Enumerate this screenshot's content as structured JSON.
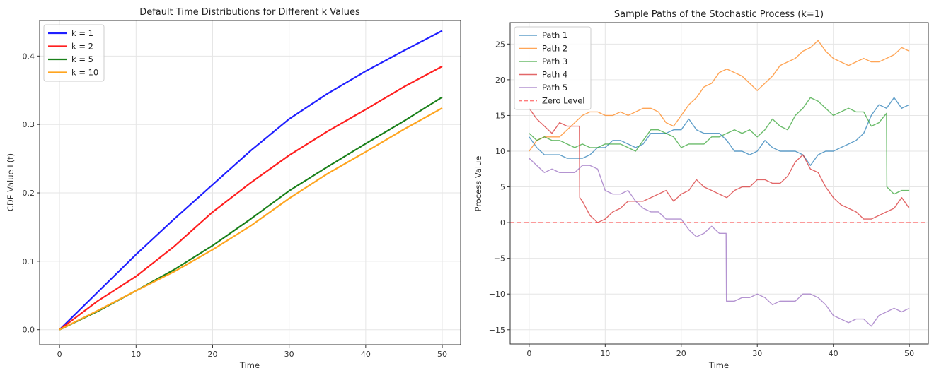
{
  "chart_data": [
    {
      "type": "line",
      "title": "Default Time Distributions for Different k Values",
      "xlabel": "Time",
      "ylabel": "CDF Value L(t)",
      "xlim": [
        -2.6,
        52.4
      ],
      "ylim": [
        -0.022,
        0.452
      ],
      "xticks": [
        0,
        10,
        20,
        30,
        40,
        50
      ],
      "xtick_labels": [
        "0",
        "10",
        "20",
        "30",
        "40",
        "50"
      ],
      "yticks": [
        0,
        0.1,
        0.2,
        0.3,
        0.4
      ],
      "ytick_labels": [
        "0.0",
        "0.1",
        "0.2",
        "0.3",
        "0.4"
      ],
      "grid": true,
      "legend_position": "top-left",
      "x": [
        0,
        5,
        10,
        15,
        20,
        25,
        30,
        35,
        40,
        45,
        50
      ],
      "series": [
        {
          "name": "k = 1",
          "color": "#1f1fff",
          "values": [
            0,
            0.055,
            0.11,
            0.162,
            0.212,
            0.262,
            0.308,
            0.345,
            0.378,
            0.408,
            0.437
          ]
        },
        {
          "name": "k = 2",
          "color": "#ff1f1f",
          "values": [
            0,
            0.042,
            0.078,
            0.122,
            0.172,
            0.215,
            0.255,
            0.29,
            0.322,
            0.355,
            0.385
          ]
        },
        {
          "name": "k = 5",
          "color": "#1a801a",
          "values": [
            0,
            0.027,
            0.057,
            0.088,
            0.123,
            0.162,
            0.203,
            0.238,
            0.272,
            0.305,
            0.34
          ]
        },
        {
          "name": "k = 10",
          "color": "#ffa51f",
          "values": [
            0,
            0.028,
            0.057,
            0.085,
            0.117,
            0.152,
            0.192,
            0.228,
            0.26,
            0.293,
            0.324
          ]
        }
      ]
    },
    {
      "type": "line",
      "title": "Sample Paths of the Stochastic Process (k=1)",
      "xlabel": "Time",
      "ylabel": "Process Value",
      "xlim": [
        -2.5,
        52.5
      ],
      "ylim": [
        -17,
        28
      ],
      "xticks": [
        0,
        10,
        20,
        30,
        40,
        50
      ],
      "xtick_labels": [
        "0",
        "10",
        "20",
        "30",
        "40",
        "50"
      ],
      "yticks": [
        -15,
        -10,
        -5,
        0,
        5,
        10,
        15,
        20,
        25
      ],
      "ytick_labels": [
        "−15",
        "−10",
        "−5",
        "0",
        "5",
        "10",
        "15",
        "20",
        "25"
      ],
      "grid": true,
      "legend_position": "top-left",
      "series": [
        {
          "name": "Path 1",
          "color": "#1f77b4",
          "x": [
            0,
            1,
            2,
            3,
            4,
            5,
            6,
            7,
            8,
            9,
            10,
            11,
            12,
            13,
            14,
            15,
            16,
            17,
            18,
            19,
            20,
            21,
            22,
            23,
            24,
            25,
            26,
            27,
            28,
            29,
            30,
            31,
            32,
            33,
            34,
            35,
            36,
            37,
            38,
            39,
            40,
            41,
            42,
            43,
            44,
            45,
            46,
            47,
            48,
            49,
            50
          ],
          "y": [
            12,
            10.5,
            9.5,
            9.5,
            9.5,
            9,
            9,
            9,
            9.5,
            10.5,
            10.5,
            11.5,
            11.5,
            11,
            10.5,
            11,
            12.5,
            12.5,
            12.5,
            13,
            13,
            14.5,
            13,
            12.5,
            12.5,
            12.5,
            11.5,
            10,
            10,
            9.5,
            10,
            11.5,
            10.5,
            10,
            10,
            10,
            9.5,
            8,
            9.5,
            10,
            10,
            10.5,
            11,
            11.5,
            12.5,
            15,
            16.5,
            16,
            17.5,
            16,
            16.5
          ]
        },
        {
          "name": "Path 2",
          "color": "#ff7f0e",
          "x": [
            0,
            1,
            2,
            3,
            4,
            5,
            6,
            7,
            8,
            9,
            10,
            11,
            12,
            13,
            14,
            15,
            16,
            17,
            18,
            19,
            20,
            21,
            22,
            23,
            24,
            25,
            26,
            27,
            28,
            29,
            30,
            31,
            32,
            33,
            34,
            35,
            36,
            37,
            38,
            39,
            40,
            41,
            42,
            43,
            44,
            45,
            46,
            47,
            48,
            49,
            50
          ],
          "y": [
            10,
            11.5,
            12,
            12,
            12,
            13,
            14,
            15,
            15.5,
            15.5,
            15,
            15,
            15.5,
            15,
            15.5,
            16,
            16,
            15.5,
            14,
            13.5,
            15,
            16.5,
            17.5,
            19,
            19.5,
            21,
            21.5,
            21,
            20.5,
            19.5,
            18.5,
            19.5,
            20.5,
            22,
            22.5,
            23,
            24,
            24.5,
            25.5,
            24,
            23,
            22.5,
            22,
            22.5,
            23,
            22.5,
            22.5,
            23,
            23.5,
            24.5,
            24
          ]
        },
        {
          "name": "Path 3",
          "color": "#2ca02c",
          "x": [
            0,
            1,
            2,
            3,
            4,
            5,
            6,
            7,
            8,
            9,
            10,
            11,
            12,
            13,
            14,
            15,
            16,
            17,
            18,
            19,
            20,
            21,
            22,
            23,
            24,
            25,
            26,
            27,
            28,
            29,
            30,
            31,
            32,
            33,
            34,
            35,
            36,
            37,
            38,
            39,
            40,
            41,
            42,
            43,
            44,
            45,
            46,
            47,
            47.05,
            48,
            49,
            50
          ],
          "y": [
            12.5,
            11.5,
            12,
            11.5,
            11.5,
            11,
            10.5,
            11,
            10.5,
            10.5,
            11,
            11,
            11,
            10.5,
            10,
            11.5,
            13,
            13,
            12.5,
            12,
            10.5,
            11,
            11,
            11,
            12,
            12,
            12.5,
            13,
            12.5,
            13,
            12,
            13,
            14.5,
            13.5,
            13,
            15,
            16,
            17.5,
            17,
            16,
            15,
            15.5,
            16,
            15.5,
            15.5,
            13.5,
            14,
            15.3,
            5,
            4,
            4.5,
            4.5
          ]
        },
        {
          "name": "Path 4",
          "color": "#d62728",
          "x": [
            0,
            1,
            2,
            3,
            4,
            5,
            6,
            6.6,
            6.65,
            7,
            8,
            9,
            10,
            11,
            12,
            13,
            14,
            15,
            16,
            17,
            18,
            19,
            20,
            21,
            22,
            23,
            24,
            25,
            26,
            27,
            28,
            29,
            30,
            31,
            32,
            33,
            34,
            35,
            36,
            37,
            38,
            39,
            40,
            41,
            42,
            43,
            44,
            45,
            46,
            47,
            48,
            49,
            50
          ],
          "y": [
            16,
            14.5,
            13.5,
            12.5,
            14,
            13.5,
            13.5,
            13.5,
            3.5,
            3,
            1,
            0,
            0.5,
            1.5,
            2,
            3,
            3,
            3,
            3.5,
            4,
            4.5,
            3,
            4,
            4.5,
            6,
            5,
            4.5,
            4,
            3.5,
            4.5,
            5,
            5,
            6,
            6,
            5.5,
            5.5,
            6.5,
            8.5,
            9.5,
            7.5,
            7,
            5,
            3.5,
            2.5,
            2,
            1.5,
            0.5,
            0.5,
            1,
            1.5,
            2,
            3.5,
            2
          ]
        },
        {
          "name": "Path 5",
          "color": "#9467bd",
          "x": [
            0,
            1,
            2,
            3,
            4,
            5,
            6,
            7,
            8,
            9,
            10,
            11,
            12,
            13,
            14,
            15,
            16,
            17,
            18,
            19,
            20,
            21,
            22,
            23,
            24,
            25,
            25.9,
            25.95,
            27,
            28,
            29,
            30,
            31,
            32,
            33,
            34,
            35,
            36,
            37,
            38,
            39,
            40,
            41,
            42,
            43,
            44,
            45,
            46,
            47,
            48,
            49,
            50
          ],
          "y": [
            9,
            8,
            7,
            7.5,
            7,
            7,
            7,
            8,
            8,
            7.5,
            4.5,
            4,
            4,
            4.5,
            3,
            2,
            1.5,
            1.5,
            0.5,
            0.5,
            0.5,
            -1,
            -2,
            -1.5,
            -0.5,
            -1.5,
            -1.5,
            -11,
            -11,
            -10.5,
            -10.5,
            -10,
            -10.5,
            -11.5,
            -11,
            -11,
            -11,
            -10,
            -10,
            -10.5,
            -11.5,
            -13,
            -13.5,
            -14,
            -13.5,
            -13.5,
            -14.5,
            -13,
            -12.5,
            -12,
            -12.5,
            -12
          ]
        },
        {
          "name": "Zero Level",
          "color": "#ff4444",
          "dashed": true,
          "y_constant": 0
        }
      ]
    }
  ]
}
